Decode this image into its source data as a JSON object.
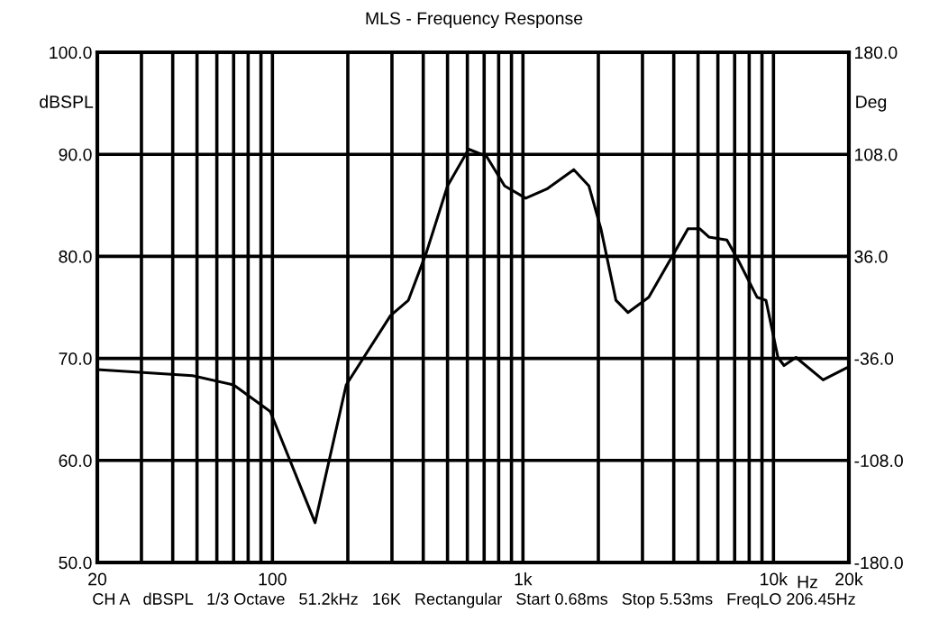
{
  "chart_data": {
    "type": "line",
    "title": "MLS - Frequency Response",
    "xlabel": "Hz",
    "ylabel": "dBSPL",
    "y2label": "Deg",
    "annotations": [
      "CH A   dBSPL   1/3 Octave   51.2kHz   16K   Rectangular   Start 0.68ms   Stop 5.53ms   FreqLO 206.45Hz"
    ],
    "log": "x",
    "grid": true,
    "legend": false,
    "marker": "none",
    "line_style": "solid",
    "xlim": [
      20,
      20000
    ],
    "ylim": [
      50,
      100
    ],
    "y2lim": [
      -180,
      180
    ],
    "xticks": [
      {
        "value": 20,
        "label": "20"
      },
      {
        "value": 30,
        "label": null
      },
      {
        "value": 40,
        "label": null
      },
      {
        "value": 50,
        "label": null
      },
      {
        "value": 60,
        "label": null
      },
      {
        "value": 70,
        "label": null
      },
      {
        "value": 80,
        "label": null
      },
      {
        "value": 90,
        "label": null
      },
      {
        "value": 100,
        "label": "100"
      },
      {
        "value": 200,
        "label": null
      },
      {
        "value": 300,
        "label": null
      },
      {
        "value": 400,
        "label": null
      },
      {
        "value": 500,
        "label": null
      },
      {
        "value": 600,
        "label": null
      },
      {
        "value": 700,
        "label": null
      },
      {
        "value": 800,
        "label": null
      },
      {
        "value": 900,
        "label": null
      },
      {
        "value": 1000,
        "label": "1k"
      },
      {
        "value": 2000,
        "label": null
      },
      {
        "value": 3000,
        "label": null
      },
      {
        "value": 4000,
        "label": null
      },
      {
        "value": 5000,
        "label": null
      },
      {
        "value": 6000,
        "label": null
      },
      {
        "value": 7000,
        "label": null
      },
      {
        "value": 8000,
        "label": null
      },
      {
        "value": 9000,
        "label": null
      },
      {
        "value": 10000,
        "label": "10k"
      },
      {
        "value": 20000,
        "label": "20k"
      }
    ],
    "yticks": [
      {
        "value": 50,
        "label": "50.0"
      },
      {
        "value": 60,
        "label": "60.0"
      },
      {
        "value": 70,
        "label": "70.0"
      },
      {
        "value": 80,
        "label": "80.0"
      },
      {
        "value": 90,
        "label": "90.0"
      },
      {
        "value": 100,
        "label": "100.0"
      }
    ],
    "y2ticks": [
      {
        "value": -180,
        "label": "-180.0"
      },
      {
        "value": -108,
        "label": "-108.0"
      },
      {
        "value": -36,
        "label": "-36.0"
      },
      {
        "value": 36,
        "label": "36.0"
      },
      {
        "value": 108,
        "label": "108.0"
      },
      {
        "value": 180,
        "label": "180.0"
      }
    ],
    "series": [
      {
        "color": "#000000",
        "x": [
          20,
          48,
          70,
          98,
          148,
          197,
          296,
          349,
          412,
          500,
          607,
          716,
          845,
          1026,
          1245,
          1596,
          1834,
          2048,
          2351,
          2625,
          3178,
          3964,
          4557,
          5084,
          5524,
          6518,
          7278,
          8597,
          9334,
          10420,
          11020,
          12300,
          15780,
          19660,
          20000
        ],
        "values": [
          68.9,
          68.3,
          67.4,
          64.8,
          53.9,
          67.4,
          74.2,
          75.7,
          80.4,
          86.9,
          90.5,
          89.8,
          86.9,
          85.7,
          86.6,
          88.5,
          86.9,
          82.7,
          75.7,
          74.5,
          76.0,
          80.1,
          82.7,
          82.7,
          81.9,
          81.6,
          79.5,
          76.0,
          75.7,
          70.1,
          69.3,
          70.1,
          67.9,
          69.1,
          69.0
        ]
      }
    ]
  }
}
